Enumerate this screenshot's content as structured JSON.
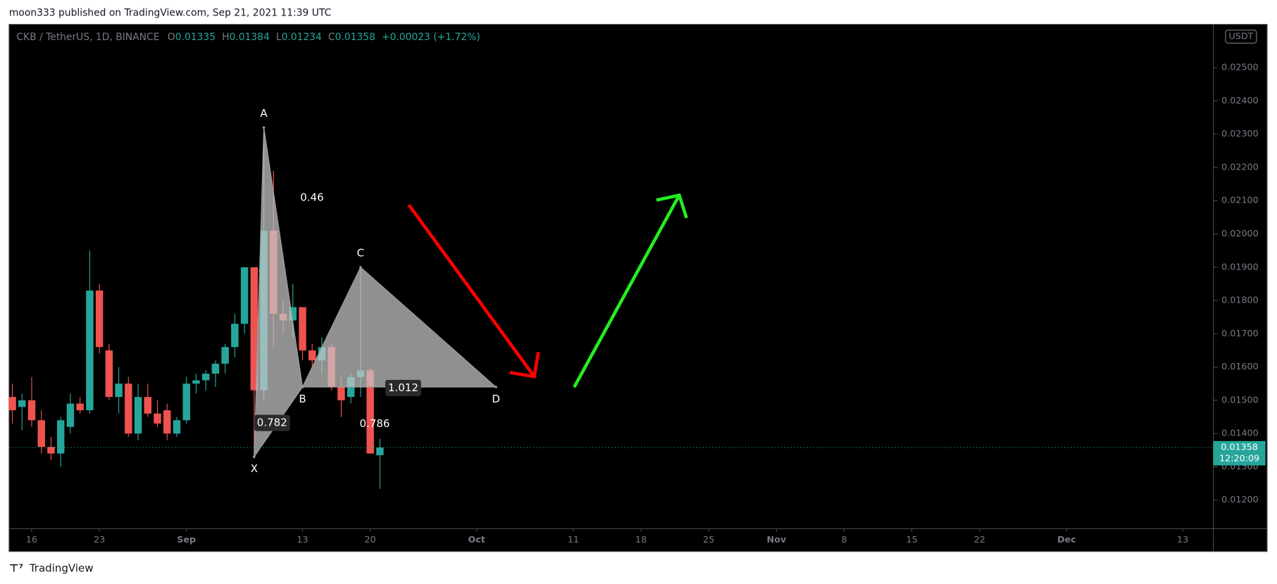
{
  "header": {
    "publisher": "moon333 published on TradingView.com, Sep 21, 2021 11:39 UTC"
  },
  "footer": {
    "brand": "TradingView"
  },
  "chart_data": {
    "type": "candlestick",
    "symbol": "CKB / TetherUS, 1D, BINANCE",
    "legend": {
      "o_label": "O",
      "o": 0.01335,
      "h_label": "H",
      "h": 0.01384,
      "l_label": "L",
      "l": 0.01234,
      "c_label": "C",
      "c": 0.01358,
      "change": "+0.00023 (+1.72%)"
    },
    "currency": "USDT",
    "last_price": 0.01358,
    "countdown": "12:20:09",
    "up_color": "#26a69a",
    "down_color": "#ef5350",
    "x": [
      "2021-08-14",
      "2021-08-15",
      "2021-08-16",
      "2021-08-17",
      "2021-08-18",
      "2021-08-19",
      "2021-08-20",
      "2021-08-21",
      "2021-08-22",
      "2021-08-23",
      "2021-08-24",
      "2021-08-25",
      "2021-08-26",
      "2021-08-27",
      "2021-08-28",
      "2021-08-29",
      "2021-08-30",
      "2021-08-31",
      "2021-09-01",
      "2021-09-02",
      "2021-09-03",
      "2021-09-04",
      "2021-09-05",
      "2021-09-06",
      "2021-09-07",
      "2021-09-08",
      "2021-09-09",
      "2021-09-10",
      "2021-09-11",
      "2021-09-12",
      "2021-09-13",
      "2021-09-14",
      "2021-09-15",
      "2021-09-16",
      "2021-09-17",
      "2021-09-18",
      "2021-09-19",
      "2021-09-20",
      "2021-09-21"
    ],
    "open": [
      0.0151,
      0.0148,
      0.015,
      0.0144,
      0.0136,
      0.0134,
      0.0142,
      0.0149,
      0.0147,
      0.0183,
      0.0165,
      0.0151,
      0.0155,
      0.014,
      0.0151,
      0.0146,
      0.0147,
      0.014,
      0.0144,
      0.0155,
      0.0156,
      0.0158,
      0.0161,
      0.0166,
      0.0173,
      0.019,
      0.0153,
      0.0201,
      0.0176,
      0.0174,
      0.0178,
      0.0165,
      0.0162,
      0.0166,
      0.0154,
      0.0151,
      0.0157,
      0.0159,
      0.01335
    ],
    "high": [
      0.0155,
      0.0152,
      0.0157,
      0.0147,
      0.0139,
      0.0145,
      0.0152,
      0.0151,
      0.0195,
      0.0185,
      0.0167,
      0.016,
      0.0157,
      0.0155,
      0.0155,
      0.015,
      0.0149,
      0.0145,
      0.0157,
      0.0158,
      0.0159,
      0.0162,
      0.0167,
      0.0176,
      0.019,
      0.019,
      0.0232,
      0.0219,
      0.018,
      0.0185,
      0.0178,
      0.0167,
      0.0169,
      0.0167,
      0.0157,
      0.0158,
      0.019,
      0.016,
      0.01384
    ],
    "low": [
      0.0143,
      0.0141,
      0.0142,
      0.0134,
      0.0132,
      0.013,
      0.014,
      0.0146,
      0.0146,
      0.0164,
      0.015,
      0.0146,
      0.0139,
      0.0138,
      0.0145,
      0.0142,
      0.0138,
      0.0139,
      0.0143,
      0.0152,
      0.0153,
      0.0154,
      0.0158,
      0.0163,
      0.017,
      0.0133,
      0.015,
      0.0166,
      0.017,
      0.0169,
      0.0162,
      0.016,
      0.0158,
      0.0153,
      0.0145,
      0.0149,
      0.0151,
      0.0134,
      0.01234
    ],
    "close": [
      0.0147,
      0.015,
      0.0144,
      0.0136,
      0.0134,
      0.0144,
      0.0149,
      0.0147,
      0.0183,
      0.0166,
      0.0151,
      0.0155,
      0.014,
      0.0151,
      0.0146,
      0.0143,
      0.014,
      0.0144,
      0.0155,
      0.0156,
      0.0158,
      0.0161,
      0.0166,
      0.0173,
      0.019,
      0.0153,
      0.0201,
      0.0176,
      0.0174,
      0.0178,
      0.0165,
      0.0162,
      0.0166,
      0.0154,
      0.015,
      0.0157,
      0.0159,
      0.0134,
      0.01358
    ],
    "xlim": [
      "2021-08-14",
      "2021-12-16"
    ],
    "xticks": [
      {
        "value": "2021-08-16",
        "label": "16"
      },
      {
        "value": "2021-08-23",
        "label": "23"
      },
      {
        "value": "2021-09-01",
        "label": "Sep"
      },
      {
        "value": "2021-09-13",
        "label": "13"
      },
      {
        "value": "2021-09-20",
        "label": "20"
      },
      {
        "value": "2021-10-01",
        "label": "Oct"
      },
      {
        "value": "2021-10-11",
        "label": "11"
      },
      {
        "value": "2021-10-18",
        "label": "18"
      },
      {
        "value": "2021-10-25",
        "label": "25"
      },
      {
        "value": "2021-11-01",
        "label": "Nov"
      },
      {
        "value": "2021-11-08",
        "label": "8"
      },
      {
        "value": "2021-11-15",
        "label": "15"
      },
      {
        "value": "2021-11-22",
        "label": "22"
      },
      {
        "value": "2021-12-01",
        "label": "Dec"
      },
      {
        "value": "2021-12-13",
        "label": "13"
      }
    ],
    "ylim": [
      0.01114,
      0.0263
    ],
    "yticks": [
      {
        "value": 0.012,
        "label": "0.01200"
      },
      {
        "value": 0.013,
        "label": "0.01300"
      },
      {
        "value": 0.014,
        "label": "0.01400"
      },
      {
        "value": 0.015,
        "label": "0.01500"
      },
      {
        "value": 0.016,
        "label": "0.01600"
      },
      {
        "value": 0.017,
        "label": "0.01700"
      },
      {
        "value": 0.018,
        "label": "0.01800"
      },
      {
        "value": 0.019,
        "label": "0.01900"
      },
      {
        "value": 0.02,
        "label": "0.02000"
      },
      {
        "value": 0.021,
        "label": "0.02100"
      },
      {
        "value": 0.022,
        "label": "0.02200"
      },
      {
        "value": 0.023,
        "label": "0.02300"
      },
      {
        "value": 0.024,
        "label": "0.02400"
      },
      {
        "value": 0.025,
        "label": "0.02500"
      }
    ],
    "pattern": {
      "points": [
        {
          "label": "X",
          "x": "2021-09-08",
          "y": 0.0133
        },
        {
          "label": "A",
          "x": "2021-09-09",
          "y": 0.0232
        },
        {
          "label": "B",
          "x": "2021-09-13",
          "y": 0.0154
        },
        {
          "label": "C",
          "x": "2021-09-19",
          "y": 0.019
        },
        {
          "label": "D",
          "x": "2021-10-03",
          "y": 0.0154
        }
      ],
      "ratios": [
        "0.46",
        "0.782",
        "1.012",
        "0.786"
      ]
    }
  }
}
